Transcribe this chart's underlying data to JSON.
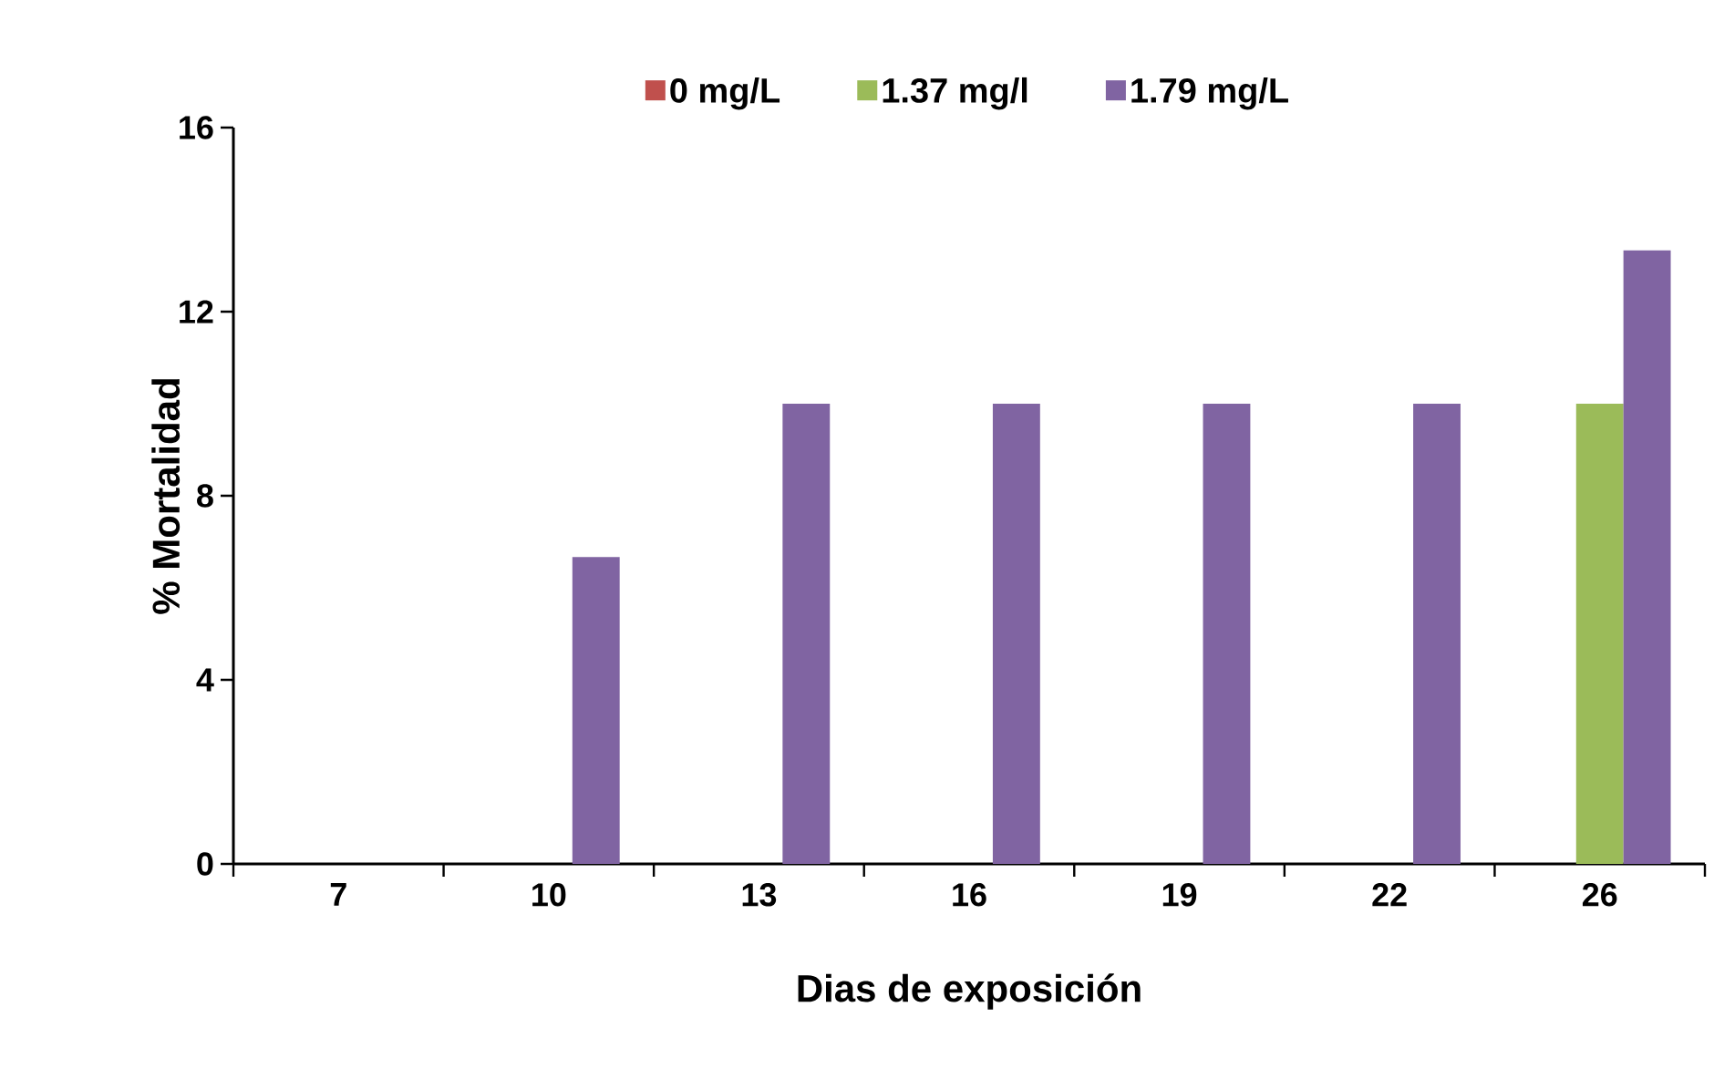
{
  "chart_data": {
    "type": "bar",
    "xlabel": "Dias de exposición",
    "ylabel": "% Mortalidad",
    "categories": [
      "7",
      "10",
      "13",
      "16",
      "19",
      "22",
      "26"
    ],
    "ylim": [
      0,
      16
    ],
    "yticks": [
      0,
      4,
      8,
      12,
      16
    ],
    "legend": "top",
    "series": [
      {
        "name": "0 mg/L",
        "color": "#c0504d",
        "values": [
          0,
          0,
          0,
          0,
          0,
          0,
          0
        ]
      },
      {
        "name": "1.37 mg/l",
        "color": "#9bbb59",
        "values": [
          0,
          0,
          0,
          0,
          0,
          0,
          10
        ]
      },
      {
        "name": "1.79 mg/L",
        "color": "#8064a2",
        "values": [
          0,
          6.67,
          10,
          10,
          10,
          10,
          13.33
        ]
      }
    ]
  }
}
